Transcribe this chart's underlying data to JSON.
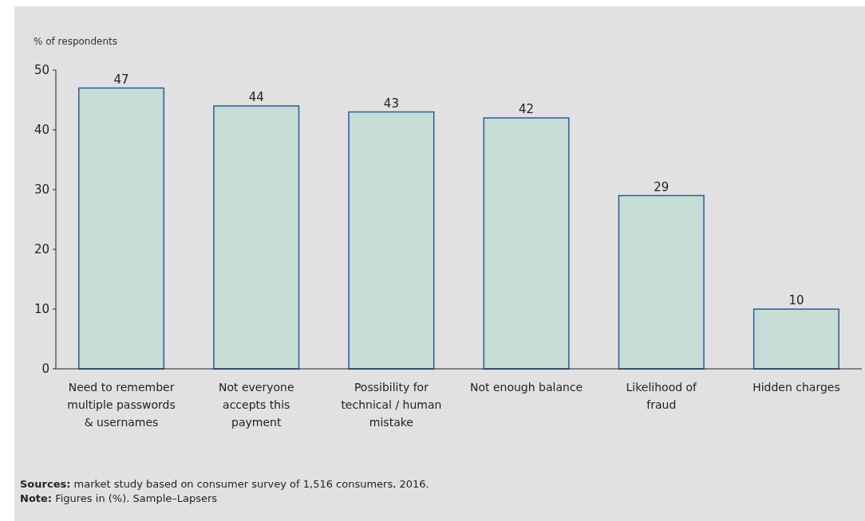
{
  "chart_data": {
    "type": "bar",
    "ylabel": "% of respondents",
    "categories": [
      "Need to remember multiple passwords & usernames",
      "Not everyone accepts this payment",
      "Possibility for technical / human mistake",
      "Not enough balance",
      "Likelihood of fraud",
      "Hidden charges"
    ],
    "values": [
      47,
      44,
      43,
      42,
      29,
      10
    ],
    "color": "#c6ddd6",
    "data_labels": true,
    "ylim": [
      0,
      50
    ],
    "yticks": [
      0,
      10,
      20,
      30,
      40,
      50
    ],
    "grid": false,
    "annotations": [
      "Sources: market study based on consumer survey of 1,516 consumers, 2016.",
      "Note: Figures in (%). Sample–Lapsers"
    ]
  }
}
